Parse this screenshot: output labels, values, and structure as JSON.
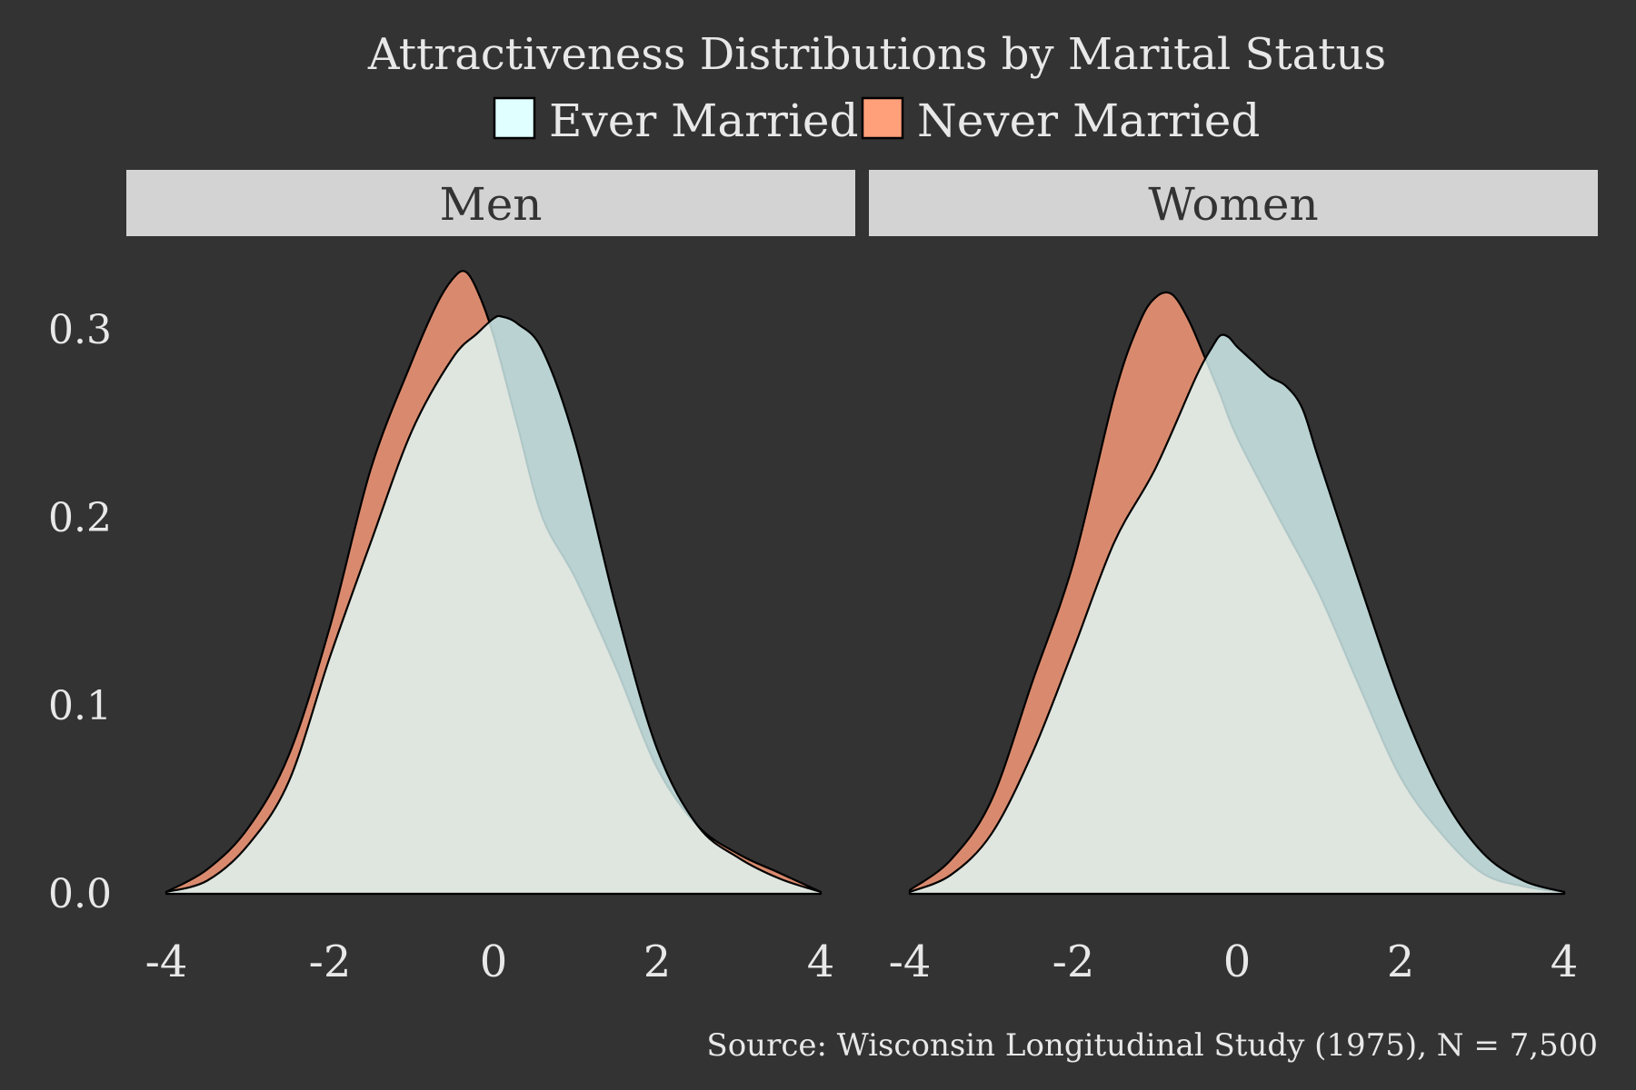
{
  "chart_data": {
    "type": "area",
    "title": "Attractiveness Distributions by Marital Status",
    "caption": "Source: Wisconsin Longitudinal Study (1975), N = 7,500",
    "legend": {
      "placement": "top",
      "entries": [
        {
          "name": "Ever Married",
          "color": "#E0FFFF"
        },
        {
          "name": "Never Married",
          "color": "#FFA07A"
        }
      ]
    },
    "xlim": [
      -4,
      4
    ],
    "ylim": [
      0,
      0.33
    ],
    "x_ticks": [
      -4,
      -2,
      0,
      2,
      4
    ],
    "x_tick_labels": [
      "-4",
      "-2",
      "0",
      "2",
      "4"
    ],
    "y_ticks": [
      0.0,
      0.1,
      0.2,
      0.3
    ],
    "y_tick_labels": [
      "0.0",
      "0.1",
      "0.2",
      "0.3"
    ],
    "grid": false,
    "colors": {
      "background": "#333333",
      "strip": "#D3D3D3",
      "strip_text": "#333333",
      "text": "#E8E8E8",
      "ever_married_fill": "#E0FFFF",
      "never_married_fill": "#FFA07A",
      "outline": "#000000"
    },
    "panels": [
      {
        "strip_label": "Men",
        "series": [
          {
            "name": "Never Married",
            "x": [
              -4.0,
              -3.5,
              -3.0,
              -2.5,
              -2.0,
              -1.5,
              -1.0,
              -0.7,
              -0.5,
              -0.35,
              -0.2,
              0.0,
              0.3,
              0.6,
              1.0,
              1.5,
              2.0,
              2.5,
              3.0,
              3.5,
              4.0
            ],
            "y": [
              0.001,
              0.013,
              0.035,
              0.074,
              0.142,
              0.226,
              0.283,
              0.313,
              0.327,
              0.331,
              0.321,
              0.297,
              0.248,
              0.2,
              0.168,
              0.12,
              0.067,
              0.036,
              0.021,
              0.011,
              0.001
            ]
          },
          {
            "name": "Ever Married",
            "x": [
              -4.0,
              -3.5,
              -3.0,
              -2.5,
              -2.0,
              -1.5,
              -1.0,
              -0.5,
              -0.2,
              0.0,
              0.1,
              0.3,
              0.6,
              1.0,
              1.5,
              2.0,
              2.5,
              3.0,
              3.5,
              4.0
            ],
            "y": [
              0.001,
              0.007,
              0.026,
              0.06,
              0.126,
              0.187,
              0.246,
              0.285,
              0.298,
              0.306,
              0.307,
              0.303,
              0.289,
              0.24,
              0.152,
              0.077,
              0.036,
              0.019,
              0.008,
              0.001
            ]
          }
        ]
      },
      {
        "strip_label": "Women",
        "series": [
          {
            "name": "Never Married",
            "x": [
              -4.0,
              -3.5,
              -3.0,
              -2.5,
              -2.0,
              -1.5,
              -1.2,
              -1.0,
              -0.8,
              -0.6,
              -0.4,
              -0.2,
              0.0,
              0.5,
              1.0,
              1.5,
              2.0,
              2.5,
              3.0,
              3.5,
              4.0
            ],
            "y": [
              0.002,
              0.018,
              0.05,
              0.113,
              0.176,
              0.265,
              0.303,
              0.317,
              0.319,
              0.306,
              0.286,
              0.265,
              0.243,
              0.201,
              0.16,
              0.11,
              0.062,
              0.032,
              0.011,
              0.004,
              0.001
            ]
          },
          {
            "name": "Ever Married",
            "x": [
              -4.0,
              -3.5,
              -3.0,
              -2.5,
              -2.0,
              -1.5,
              -1.0,
              -0.5,
              -0.3,
              -0.2,
              -0.1,
              0.0,
              0.2,
              0.4,
              0.6,
              0.8,
              1.0,
              1.5,
              2.0,
              2.5,
              3.0,
              3.5,
              4.0
            ],
            "y": [
              0.001,
              0.01,
              0.032,
              0.075,
              0.13,
              0.187,
              0.226,
              0.275,
              0.291,
              0.297,
              0.296,
              0.291,
              0.283,
              0.275,
              0.27,
              0.258,
              0.231,
              0.165,
              0.102,
              0.053,
              0.022,
              0.007,
              0.001
            ]
          }
        ]
      }
    ]
  }
}
